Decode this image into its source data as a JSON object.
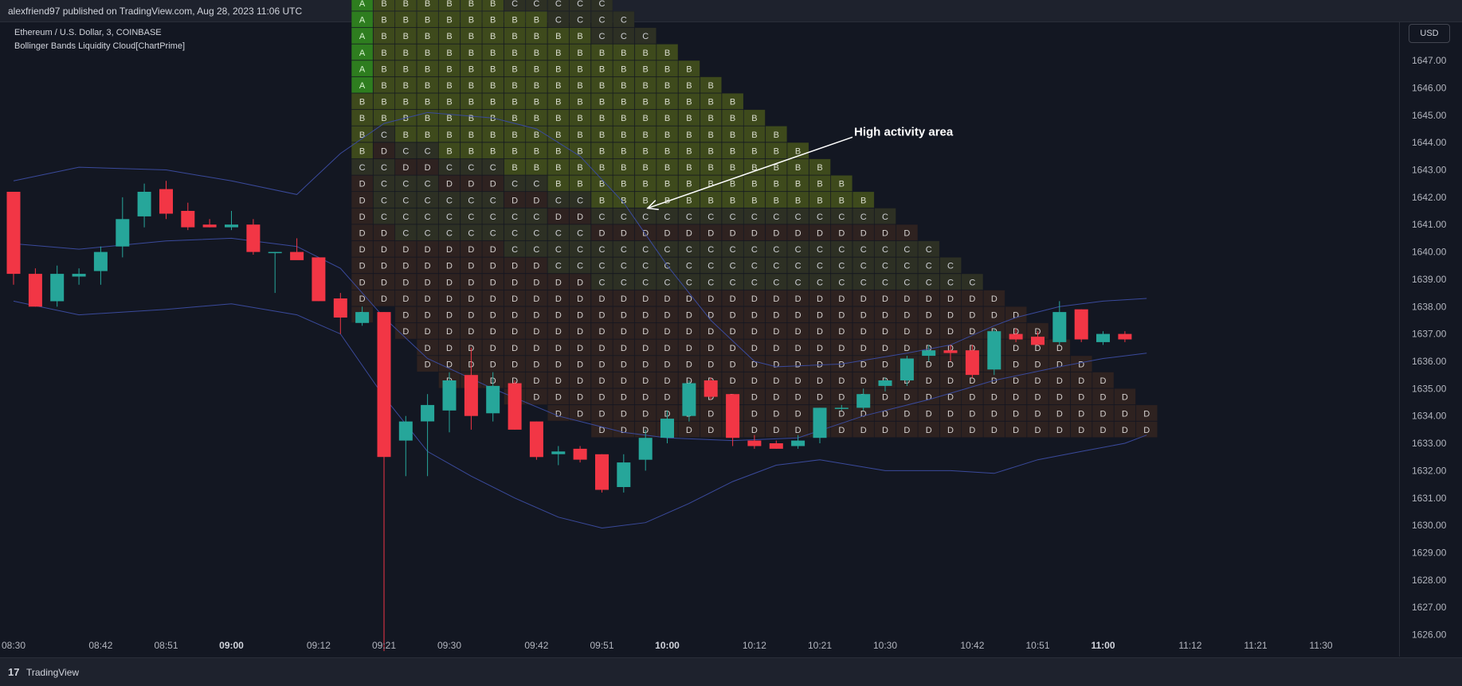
{
  "header": {
    "published_line": "alexfriend97 published on TradingView.com, Aug 28, 2023 11:06 UTC"
  },
  "legend": {
    "symbol": "Ethereum / U.S. Dollar, 3, COINBASE",
    "indicator": "Bollinger Bands Liquidity Cloud[ChartPrime]"
  },
  "currency": "USD",
  "footer": {
    "logo_mark": "17",
    "brand": "TradingView"
  },
  "colors": {
    "background": "#131722",
    "up_candle": "#26a69a",
    "down_candle": "#f23645",
    "band": "#3a4a9c",
    "cloud_A": "#2e7d1f",
    "cloud_S": "#18b51a",
    "cloud_B": "#3e4a1c",
    "cloud_C": "#2d3024",
    "cloud_D": "#2e2220"
  },
  "chart_data": {
    "type": "candlestick",
    "title": "Ethereum / U.S. Dollar, 3, COINBASE",
    "ylim": [
      1625.2,
      1648.4
    ],
    "yticks": [
      "1626.00",
      "1627.00",
      "1628.00",
      "1629.00",
      "1630.00",
      "1631.00",
      "1632.00",
      "1633.00",
      "1634.00",
      "1635.00",
      "1636.00",
      "1637.00",
      "1638.00",
      "1639.00",
      "1640.00",
      "1641.00",
      "1642.00",
      "1643.00",
      "1644.00",
      "1645.00",
      "1646.00",
      "1647.00"
    ],
    "xticks": [
      {
        "label": "08:30",
        "bar": 0,
        "bold": false
      },
      {
        "label": "08:42",
        "bar": 4,
        "bold": false
      },
      {
        "label": "08:51",
        "bar": 7,
        "bold": false
      },
      {
        "label": "09:00",
        "bar": 10,
        "bold": true
      },
      {
        "label": "09:12",
        "bar": 14,
        "bold": false
      },
      {
        "label": "09:21",
        "bar": 17,
        "bold": false
      },
      {
        "label": "09:30",
        "bar": 20,
        "bold": false
      },
      {
        "label": "09:42",
        "bar": 24,
        "bold": false
      },
      {
        "label": "09:51",
        "bar": 27,
        "bold": false
      },
      {
        "label": "10:00",
        "bar": 30,
        "bold": true
      },
      {
        "label": "10:12",
        "bar": 34,
        "bold": false
      },
      {
        "label": "10:21",
        "bar": 37,
        "bold": false
      },
      {
        "label": "10:30",
        "bar": 40,
        "bold": false
      },
      {
        "label": "10:42",
        "bar": 44,
        "bold": false
      },
      {
        "label": "10:51",
        "bar": 47,
        "bold": false
      },
      {
        "label": "11:00",
        "bar": 50,
        "bold": true
      },
      {
        "label": "11:12",
        "bar": 54,
        "bold": false
      },
      {
        "label": "11:21",
        "bar": 57,
        "bold": false
      },
      {
        "label": "11:30",
        "bar": 60,
        "bold": false
      }
    ],
    "candles": [
      [
        1642.2,
        1642.2,
        1638.8,
        1639.2
      ],
      [
        1639.2,
        1639.4,
        1638.0,
        1638.0
      ],
      [
        1638.2,
        1639.5,
        1638.0,
        1639.2
      ],
      [
        1639.1,
        1639.4,
        1638.8,
        1639.2
      ],
      [
        1639.3,
        1640.2,
        1638.8,
        1640.0
      ],
      [
        1640.2,
        1642.0,
        1639.8,
        1641.2
      ],
      [
        1641.3,
        1642.5,
        1640.9,
        1642.2
      ],
      [
        1642.3,
        1642.6,
        1641.2,
        1641.4
      ],
      [
        1641.5,
        1641.8,
        1640.8,
        1640.9
      ],
      [
        1641.0,
        1641.2,
        1640.9,
        1640.9
      ],
      [
        1640.9,
        1641.5,
        1640.8,
        1641.0
      ],
      [
        1641.0,
        1641.2,
        1639.9,
        1640.0
      ],
      [
        1640.0,
        1640.0,
        1638.5,
        1640.0
      ],
      [
        1640.0,
        1640.5,
        1639.8,
        1639.7
      ],
      [
        1639.8,
        1639.8,
        1638.2,
        1638.2
      ],
      [
        1638.3,
        1638.5,
        1637.0,
        1637.6
      ],
      [
        1637.4,
        1638.0,
        1637.3,
        1637.8
      ],
      [
        1637.8,
        1637.8,
        1625.4,
        1632.5
      ],
      [
        1633.1,
        1634.0,
        1631.8,
        1633.8
      ],
      [
        1633.8,
        1634.8,
        1631.8,
        1634.4
      ],
      [
        1634.2,
        1635.6,
        1633.4,
        1635.3
      ],
      [
        1635.5,
        1636.5,
        1633.5,
        1634.0
      ],
      [
        1634.1,
        1635.6,
        1633.8,
        1635.1
      ],
      [
        1635.2,
        1635.3,
        1633.5,
        1633.5
      ],
      [
        1633.8,
        1633.8,
        1632.4,
        1632.5
      ],
      [
        1632.6,
        1632.9,
        1632.2,
        1632.7
      ],
      [
        1632.8,
        1632.9,
        1632.3,
        1632.4
      ],
      [
        1632.6,
        1632.6,
        1631.2,
        1631.3
      ],
      [
        1631.4,
        1632.6,
        1631.2,
        1632.3
      ],
      [
        1632.4,
        1633.5,
        1632.0,
        1633.2
      ],
      [
        1633.2,
        1634.2,
        1633.0,
        1633.9
      ],
      [
        1634.0,
        1635.3,
        1633.8,
        1635.2
      ],
      [
        1635.3,
        1635.4,
        1634.6,
        1634.7
      ],
      [
        1634.8,
        1634.8,
        1632.9,
        1633.2
      ],
      [
        1633.1,
        1633.3,
        1632.8,
        1632.9
      ],
      [
        1633.0,
        1633.1,
        1632.8,
        1632.8
      ],
      [
        1632.9,
        1633.3,
        1632.8,
        1633.1
      ],
      [
        1633.2,
        1634.3,
        1633.0,
        1634.3
      ],
      [
        1634.3,
        1634.4,
        1634.2,
        1634.3
      ],
      [
        1634.3,
        1635.0,
        1634.2,
        1634.8
      ],
      [
        1635.1,
        1635.4,
        1634.9,
        1635.3
      ],
      [
        1635.3,
        1636.2,
        1635.1,
        1636.1
      ],
      [
        1636.2,
        1636.6,
        1636.0,
        1636.4
      ],
      [
        1636.4,
        1636.6,
        1636.0,
        1636.3
      ],
      [
        1636.4,
        1636.6,
        1635.4,
        1635.5
      ],
      [
        1635.7,
        1637.2,
        1635.5,
        1637.1
      ],
      [
        1637.0,
        1637.2,
        1636.7,
        1636.8
      ],
      [
        1636.9,
        1637.1,
        1636.7,
        1636.6
      ],
      [
        1636.7,
        1638.2,
        1636.6,
        1637.8
      ],
      [
        1637.9,
        1637.9,
        1636.7,
        1636.8
      ],
      [
        1636.7,
        1637.1,
        1636.6,
        1637.0
      ],
      [
        1637.0,
        1637.1,
        1636.7,
        1636.8
      ]
    ],
    "bands": {
      "upper": [
        [
          0,
          1642.6
        ],
        [
          3,
          1643.1
        ],
        [
          7,
          1643.0
        ],
        [
          10,
          1642.6
        ],
        [
          13,
          1642.1
        ],
        [
          15,
          1643.6
        ],
        [
          17,
          1644.7
        ],
        [
          19,
          1645.1
        ],
        [
          22,
          1644.9
        ],
        [
          24,
          1644.5
        ],
        [
          26,
          1643.5
        ],
        [
          28,
          1641.8
        ],
        [
          30,
          1639.5
        ],
        [
          32,
          1637.5
        ],
        [
          34,
          1636.0
        ],
        [
          35,
          1635.8
        ],
        [
          38,
          1635.9
        ],
        [
          41,
          1636.3
        ],
        [
          43,
          1636.6
        ],
        [
          45,
          1637.3
        ],
        [
          46,
          1637.6
        ],
        [
          48,
          1638.0
        ],
        [
          50,
          1638.2
        ],
        [
          52,
          1638.3
        ]
      ],
      "middle": [
        [
          0,
          1640.3
        ],
        [
          3,
          1640.1
        ],
        [
          7,
          1640.4
        ],
        [
          10,
          1640.5
        ],
        [
          13,
          1640.2
        ],
        [
          15,
          1639.4
        ],
        [
          17,
          1637.6
        ],
        [
          19,
          1636.1
        ],
        [
          22,
          1635.0
        ],
        [
          25,
          1634.0
        ],
        [
          28,
          1633.4
        ],
        [
          30,
          1633.2
        ],
        [
          33,
          1633.1
        ],
        [
          36,
          1633.2
        ],
        [
          39,
          1634.0
        ],
        [
          42,
          1634.6
        ],
        [
          45,
          1635.3
        ],
        [
          48,
          1635.8
        ],
        [
          50,
          1636.1
        ],
        [
          52,
          1636.3
        ]
      ],
      "lower": [
        [
          0,
          1638.2
        ],
        [
          3,
          1637.7
        ],
        [
          7,
          1637.9
        ],
        [
          10,
          1638.1
        ],
        [
          13,
          1637.7
        ],
        [
          15,
          1637.0
        ],
        [
          17,
          1634.7
        ],
        [
          19,
          1632.7
        ],
        [
          21,
          1631.8
        ],
        [
          23,
          1631.0
        ],
        [
          25,
          1630.3
        ],
        [
          27,
          1629.9
        ],
        [
          29,
          1630.1
        ],
        [
          31,
          1630.8
        ],
        [
          33,
          1631.6
        ],
        [
          35,
          1632.2
        ],
        [
          37,
          1632.4
        ],
        [
          40,
          1632.0
        ],
        [
          43,
          1632.0
        ],
        [
          45,
          1631.9
        ],
        [
          47,
          1632.4
        ],
        [
          49,
          1632.7
        ],
        [
          51,
          1633.0
        ],
        [
          52,
          1633.3
        ]
      ]
    },
    "cloud": {
      "bottom_price": 1629.6,
      "row_height_price": 0.6,
      "column_bars": [
        16,
        17,
        18,
        19,
        20,
        21,
        22,
        23,
        24,
        25,
        26,
        27,
        28,
        29,
        30,
        31,
        32,
        33,
        34,
        35,
        36,
        37,
        38,
        39,
        40,
        41,
        42,
        43,
        44,
        45,
        46,
        47,
        48,
        49,
        50,
        51,
        52
      ],
      "columns": [
        ".............DDDDDDDDDCBBBBAAAAAABBCCDD",
        "..............DDDDDCCCCDCBBBBBBBBBCCCC.D",
        "............DDDDDDCCCCDCBBBBBBBBBBCCCC..D",
        "..........DDDDDDDDCCCCDCBBBBBBBBBBCCCC..D",
        ".........DDDDDDDDDCCCDCBBBBBBBBBBCCCC...D",
        ".........DDDDDDDDDCCCDCBBBBBBBBBBCCCC...D",
        ".........DDDDDDDDDCCCDCBBBBBBBBBBCCCC...D",
        "........DDDDDDDDDCCCDCBBBBBBBBBBCCCC....D",
        "........DDDDDDDDDCCCDCBBBBBBBBBBCCCC....D",
        ".......DDDDDDDDDCCCDCBBBBBBBBBBCCCC.....D",
        ".......DDDDDDDDDCCCDCBBBBBBBBBBCCC......D",
        "......DDDDDDDDDCCCDCBBBBBBBBBBCCC.......D",
        "......DDDDDDDDDCCCDCBBBBBBBBBBCC........D",
        "......DDDDDDDDDCCCDCBBBBBBBBBBC.........D",
        "......DDDDDDDDDCCCDCBBBBBBBBBB..........",
        "......DDDDDDDDDCCCDCBBBBBBBBB...........",
        "......DDDDDDDDDCCCDCBBBBBBBB............",
        "......DDDDDDDDDCCCDCBBBBBBB.............",
        "......DDDDDDDDDCCCDCBBBBBB..............",
        "......DDDDDDDDDCCCDCBBBBB...............",
        "......DDDDDDDDDCCCDCBBBB................",
        "......DDDDDDDDDCCCDCBBB.................",
        "......DDDDDDDDDCCCDCBB..................",
        "......DDDDDDDDDCCCDCB...................",
        "......DDDDDDDDDCCCDC....................",
        "......DDDDDDDDDCCCD.....................",
        "......DDDDDDDDDCCC......................",
        "......DDDDDDDDDCC.......................",
        "......DDDDDDDDDC........................",
        "......DDDDDDDDD.........................",
        "......DDDDDDDD..........................",
        "......DDDDDDD...........................",
        "......DDDDDD............................",
        "......DDDDD.............................",
        "......DDDD..............................",
        "......DDD...............................",
        "......DD................................"
      ],
      "columns_note": ""
    },
    "annotation": {
      "text": "High activity area",
      "arrow_from_price": 1644.2,
      "arrow_from_bar": 38.5,
      "arrow_to_price": 1641.6,
      "arrow_to_bar": 29.1
    }
  }
}
